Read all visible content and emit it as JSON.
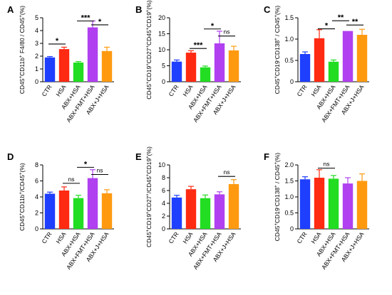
{
  "chart_data": [
    {
      "panel": "A",
      "type": "bar",
      "ylabel": "CD45+CD11b+F4/80 / CD45+(%)",
      "ylabel_rich": [
        [
          "CD45",
          ""
        ],
        [
          "+",
          "sup"
        ],
        [
          "CD11b",
          ""
        ],
        [
          "+",
          "sup"
        ],
        [
          " F4/80 / CD45",
          ""
        ],
        [
          "+",
          "sup"
        ],
        [
          "(%)",
          ""
        ]
      ],
      "ylim": [
        0,
        5
      ],
      "yticks": [
        "0",
        "1",
        "2",
        "3",
        "4",
        "5"
      ],
      "categories": [
        "CTR",
        "HSA",
        "ABX+HSA",
        "ABX+FMT+HSA",
        "ABX+J+HSA"
      ],
      "values": [
        1.9,
        2.55,
        1.5,
        4.25,
        2.4
      ],
      "errors": [
        0.07,
        0.15,
        0.08,
        0.5,
        0.3
      ],
      "annotations": [
        {
          "from": 0,
          "to": 1,
          "text": "*",
          "y": 2.95
        },
        {
          "from": 2,
          "to": 3,
          "text": "***",
          "y": 4.75
        },
        {
          "from": 3,
          "to": 4,
          "text": "*",
          "y": 4.45
        }
      ]
    },
    {
      "panel": "B",
      "type": "bar",
      "ylabel": "CD45+CD19+CD27+CD45+CD19+(%)",
      "ylabel_rich": [
        [
          "CD45",
          ""
        ],
        [
          "+",
          "sup"
        ],
        [
          "CD19",
          ""
        ],
        [
          "+",
          "sup"
        ],
        [
          "CD27",
          ""
        ],
        [
          "+",
          "sup"
        ],
        [
          "CD45",
          ""
        ],
        [
          "+",
          "sup"
        ],
        [
          "CD19",
          ""
        ],
        [
          "+",
          "sup"
        ],
        [
          "(%)",
          ""
        ]
      ],
      "ylim": [
        0,
        20
      ],
      "yticks": [
        "0",
        "5",
        "10",
        "15",
        "20"
      ],
      "categories": [
        "CTR",
        "HSA",
        "ABX+HSA",
        "ABX+FMT+HSA",
        "ABX+J+HSA"
      ],
      "values": [
        6.3,
        9.1,
        4.5,
        12.0,
        9.8
      ],
      "errors": [
        0.5,
        0.6,
        0.4,
        3.8,
        1.3
      ],
      "annotations": [
        {
          "from": 1,
          "to": 2,
          "text": "***",
          "y": 10.4
        },
        {
          "from": 2,
          "to": 3,
          "text": "*",
          "y": 16.5
        },
        {
          "from": 3,
          "to": 4,
          "text": "ns",
          "y": 14.3
        }
      ]
    },
    {
      "panel": "C",
      "type": "bar",
      "ylabel": "CD45+CD19-CD138+ / CD45+(%)",
      "ylabel_rich": [
        [
          "CD45",
          ""
        ],
        [
          "+",
          "sup"
        ],
        [
          "CD19",
          ""
        ],
        [
          "-",
          "sup"
        ],
        [
          "CD138",
          ""
        ],
        [
          "+",
          "sup"
        ],
        [
          " / CD45",
          ""
        ],
        [
          "+",
          "sup"
        ],
        [
          "(%)",
          ""
        ]
      ],
      "ylim": [
        0,
        1.5
      ],
      "yticks": [
        "0",
        "0.5",
        "1.0",
        "1.5"
      ],
      "categories": [
        "CTR",
        "HSA",
        "ABX+HSA",
        "ABX+FMT+HSA",
        "ABX+J+HSA"
      ],
      "values": [
        0.65,
        1.02,
        0.47,
        1.19,
        1.1
      ],
      "errors": [
        0.05,
        0.2,
        0.04,
        0.0,
        0.13
      ],
      "annotations": [
        {
          "from": 1,
          "to": 2,
          "text": "*",
          "y": 1.24
        },
        {
          "from": 2,
          "to": 3,
          "text": "**",
          "y": 1.43
        },
        {
          "from": 3,
          "to": 4,
          "text": "**",
          "y": 1.33
        }
      ]
    },
    {
      "panel": "D",
      "type": "bar",
      "ylabel": "CD45+CD11b+/CD45+(%)",
      "ylabel_rich": [
        [
          "CD45",
          ""
        ],
        [
          "+",
          "sup"
        ],
        [
          "CD11b",
          ""
        ],
        [
          "+",
          "sup"
        ],
        [
          "/CD45",
          ""
        ],
        [
          "+",
          "sup"
        ],
        [
          "(%)",
          ""
        ]
      ],
      "ylim": [
        0,
        8
      ],
      "yticks": [
        "0",
        "2",
        "4",
        "6",
        "8"
      ],
      "categories": [
        "CTR",
        "HSA",
        "ABX+HSA",
        "ABX+FMT+HSA",
        "ABX+J+HSA"
      ],
      "values": [
        4.4,
        4.8,
        3.85,
        6.35,
        4.45
      ],
      "errors": [
        0.2,
        0.45,
        0.35,
        1.05,
        0.45
      ],
      "annotations": [
        {
          "from": 1,
          "to": 2,
          "text": "ns",
          "y": 5.7
        },
        {
          "from": 2,
          "to": 3,
          "text": "*",
          "y": 7.7
        },
        {
          "from": 3,
          "to": 4,
          "text": "ns",
          "y": 6.8
        }
      ]
    },
    {
      "panel": "E",
      "type": "bar",
      "ylabel": "CD45+CD19+CD27+/CD45+CD19+(%)",
      "ylabel_rich": [
        [
          "CD45",
          ""
        ],
        [
          "+",
          "sup"
        ],
        [
          "CD19",
          ""
        ],
        [
          "+",
          "sup"
        ],
        [
          "CD27",
          ""
        ],
        [
          "+",
          "sup"
        ],
        [
          "/CD45",
          ""
        ],
        [
          "+",
          "sup"
        ],
        [
          "CD19",
          ""
        ],
        [
          "+",
          "sup"
        ],
        [
          "(%)",
          ""
        ]
      ],
      "ylim": [
        0,
        10
      ],
      "yticks": [
        "0",
        "2",
        "4",
        "6",
        "8",
        "10"
      ],
      "categories": [
        "CTR",
        "HSA",
        "ABX+HSA",
        "ABX+FMT+HSA",
        "ABX+J+HSA"
      ],
      "values": [
        4.9,
        6.2,
        4.8,
        5.4,
        7.0
      ],
      "errors": [
        0.35,
        0.45,
        0.5,
        0.4,
        0.7
      ],
      "annotations": [
        {
          "from": 3,
          "to": 4,
          "text": "ns",
          "y": 8.2
        }
      ]
    },
    {
      "panel": "F",
      "type": "bar",
      "ylabel": "CD45+CD19-CD138+ / CD45+(%)",
      "ylabel_rich": [
        [
          "CD45",
          ""
        ],
        [
          "+",
          "sup"
        ],
        [
          "CD19",
          ""
        ],
        [
          "-",
          "sup"
        ],
        [
          "CD138",
          ""
        ],
        [
          "+",
          "sup"
        ],
        [
          " / CD45",
          ""
        ],
        [
          "+",
          "sup"
        ],
        [
          "(%)",
          ""
        ]
      ],
      "ylim": [
        0,
        2.0
      ],
      "yticks": [
        "0",
        "0.5",
        "1.0",
        "1.5",
        "2.0"
      ],
      "categories": [
        "CTR",
        "HSA",
        "ABX+HSA",
        "ABX+FMT+HSA",
        "ABX+J+HSA"
      ],
      "values": [
        1.55,
        1.6,
        1.57,
        1.42,
        1.5
      ],
      "errors": [
        0.08,
        0.25,
        0.1,
        0.18,
        0.22
      ],
      "annotations": [
        {
          "from": 1,
          "to": 2,
          "text": "ns",
          "y": 1.9
        }
      ]
    }
  ],
  "colors": {
    "bars": [
      "#1f3fff",
      "#ff2a12",
      "#22dd22",
      "#b040f0",
      "#ff9a10"
    ],
    "errors": [
      "#1f3fff",
      "#ff2a12",
      "#22dd22",
      "#b040f0",
      "#ff9a10"
    ],
    "axis": "#000000"
  }
}
